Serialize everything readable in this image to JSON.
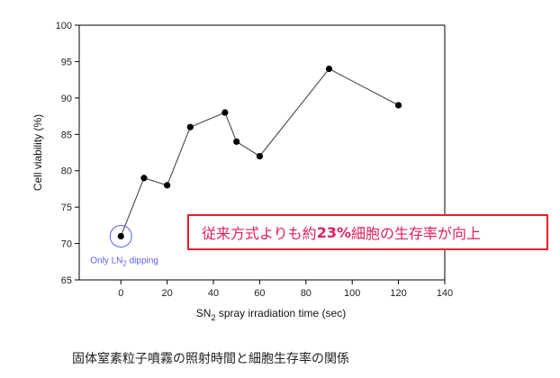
{
  "chart_data": {
    "type": "line",
    "x": [
      0,
      10,
      20,
      30,
      45,
      50,
      60,
      90,
      120
    ],
    "y": [
      71,
      79,
      78,
      86,
      88,
      84,
      82,
      94,
      89
    ],
    "xlabel": "SN2 spray irradiation time (sec)",
    "xlabel_parts": [
      "SN",
      "2",
      " spray irradiation time (sec)"
    ],
    "ylabel": "Cell viability (%)",
    "xlim": [
      -18,
      140
    ],
    "ylim": [
      65,
      100
    ],
    "xticks": [
      0,
      20,
      40,
      60,
      80,
      100,
      120,
      140
    ],
    "yticks": [
      65,
      70,
      75,
      80,
      85,
      90,
      95,
      100
    ],
    "grid": false,
    "line_color": "#555555",
    "marker_color": "#000000",
    "annotation": {
      "x": 0,
      "y": 71,
      "label_parts": [
        "Only LN",
        "2",
        " dipping"
      ],
      "color": "#5a5ff0"
    }
  },
  "highlight": {
    "before": "従来方式よりも約",
    "bold": "23%",
    "after": "細胞の生存率が向上",
    "text_color": "#e01e5a",
    "border_color": "#e8202a"
  },
  "caption": "固体窒素粒子噴霧の照射時間と細胞生存率の関係"
}
